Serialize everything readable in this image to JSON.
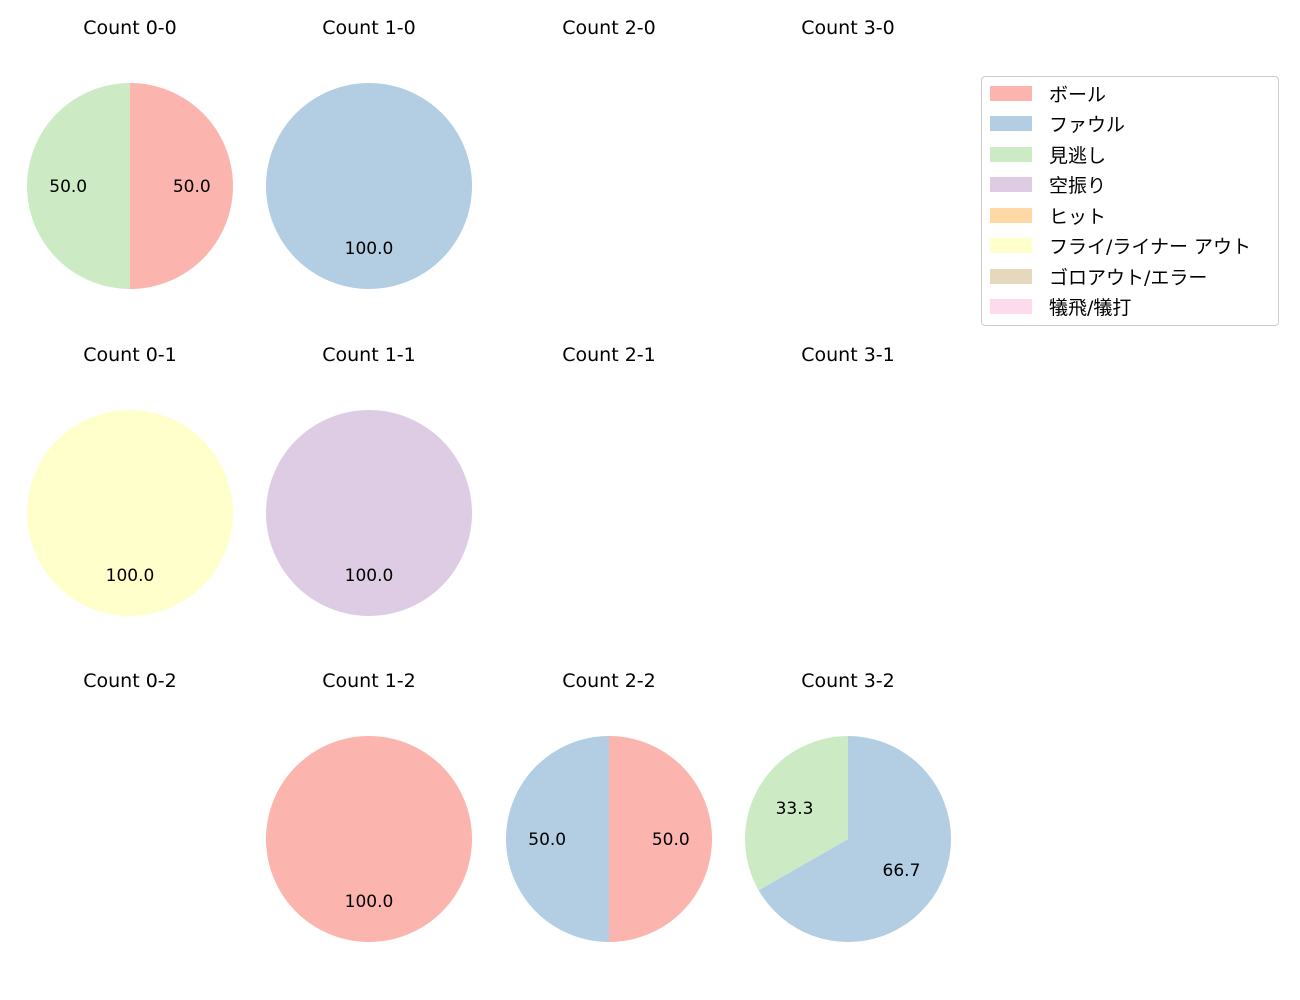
{
  "chart_data": {
    "type": "pie",
    "categories": [
      "ボール",
      "ファウル",
      "見逃し",
      "空振り",
      "ヒット",
      "フライ/ライナー アウト",
      "ゴロアウト/エラー",
      "犠飛/犠打"
    ],
    "colors": [
      "#fbb4ae",
      "#b3cde3",
      "#ccebc5",
      "#decbe4",
      "#fed9a6",
      "#ffffcc",
      "#e5d8bd",
      "#fddaec"
    ],
    "legend_position": "upper right",
    "charts": [
      {
        "title": "Count 0-0",
        "slices": [
          {
            "category": "ボール",
            "value": 50.0
          },
          {
            "category": "見逃し",
            "value": 50.0
          }
        ]
      },
      {
        "title": "Count 1-0",
        "slices": [
          {
            "category": "ファウル",
            "value": 100.0
          }
        ]
      },
      {
        "title": "Count 2-0",
        "slices": []
      },
      {
        "title": "Count 3-0",
        "slices": []
      },
      {
        "title": "Count 0-1",
        "slices": [
          {
            "category": "フライ/ライナー アウト",
            "value": 100.0
          }
        ]
      },
      {
        "title": "Count 1-1",
        "slices": [
          {
            "category": "空振り",
            "value": 100.0
          }
        ]
      },
      {
        "title": "Count 2-1",
        "slices": []
      },
      {
        "title": "Count 3-1",
        "slices": []
      },
      {
        "title": "Count 0-2",
        "slices": []
      },
      {
        "title": "Count 1-2",
        "slices": [
          {
            "category": "ボール",
            "value": 100.0
          }
        ]
      },
      {
        "title": "Count 2-2",
        "slices": [
          {
            "category": "ボール",
            "value": 50.0
          },
          {
            "category": "ファウル",
            "value": 50.0
          }
        ]
      },
      {
        "title": "Count 3-2",
        "slices": [
          {
            "category": "ファウル",
            "value": 66.7
          },
          {
            "category": "見逃し",
            "value": 33.3
          }
        ]
      }
    ]
  },
  "titles": [
    "Count 0-0",
    "Count 1-0",
    "Count 2-0",
    "Count 3-0",
    "Count 0-1",
    "Count 1-1",
    "Count 2-1",
    "Count 3-1",
    "Count 0-2",
    "Count 1-2",
    "Count 2-2",
    "Count 3-2"
  ],
  "legend": {
    "items": [
      {
        "label": "ボール",
        "color": "#fbb4ae"
      },
      {
        "label": "ファウル",
        "color": "#b3cde3"
      },
      {
        "label": "見逃し",
        "color": "#ccebc5"
      },
      {
        "label": "空振り",
        "color": "#decbe4"
      },
      {
        "label": "ヒット",
        "color": "#fed9a6"
      },
      {
        "label": "フライ/ライナー アウト",
        "color": "#ffffcc"
      },
      {
        "label": "ゴロアウト/エラー",
        "color": "#e5d8bd"
      },
      {
        "label": "犠飛/犠打",
        "color": "#fddaec"
      }
    ]
  }
}
